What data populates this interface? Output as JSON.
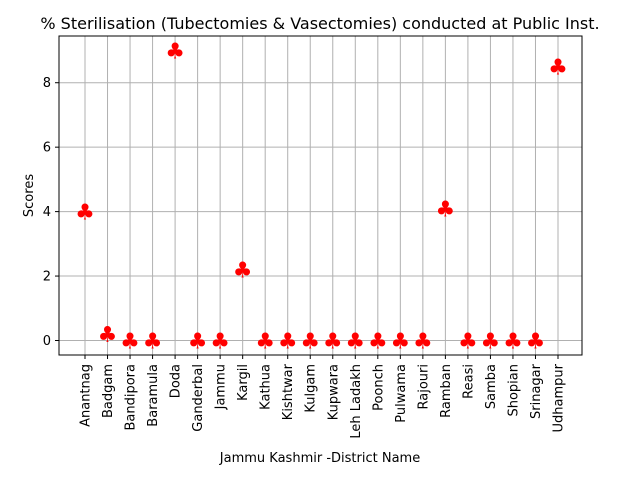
{
  "chart_data": {
    "type": "scatter",
    "title": "% Sterilisation (Tubectomies & Vasectomies) conducted at Public Inst.",
    "xlabel": "Jammu Kashmir -District Name",
    "ylabel": "Scores",
    "categories": [
      "Anantnag",
      "Badgam",
      "Bandipora",
      "Baramula",
      "Doda",
      "Ganderbal",
      "Jammu",
      "Kargil",
      "Kathua",
      "Kishtwar",
      "Kulgam",
      "Kupwara",
      "Leh Ladakh",
      "Poonch",
      "Pulwama",
      "Rajouri",
      "Ramban",
      "Reasi",
      "Samba",
      "Shopian",
      "Srinagar",
      "Udhampur"
    ],
    "values": [
      4.0,
      0.2,
      0,
      0,
      9.0,
      0,
      0,
      2.2,
      0,
      0,
      0,
      0,
      0,
      0,
      0,
      0,
      4.1,
      0,
      0,
      0,
      0,
      8.5
    ],
    "ylim": [
      -0.45,
      9.45
    ],
    "yticks": [
      0,
      2,
      4,
      6,
      8
    ],
    "grid": true,
    "marker": "♣",
    "marker_color": "#ff0000"
  }
}
